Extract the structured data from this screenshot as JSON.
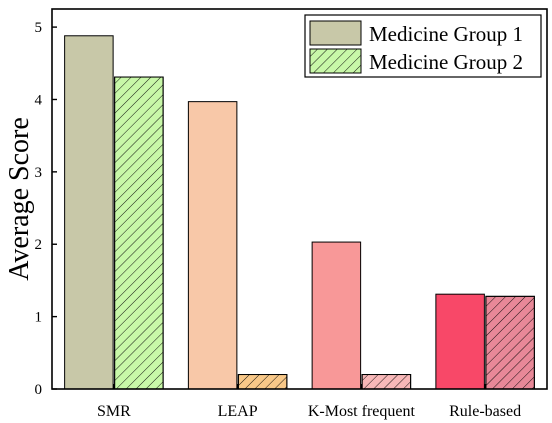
{
  "chart_data": {
    "type": "bar",
    "title": "",
    "xlabel": "",
    "ylabel": "Average Score",
    "ylim": [
      0,
      5.25
    ],
    "yticks": [
      0,
      1,
      2,
      3,
      4,
      5
    ],
    "categories": [
      "SMR",
      "LEAP",
      "K-Most frequent",
      "Rule-based"
    ],
    "series": [
      {
        "name": "Medicine Group 1",
        "values": [
          4.88,
          3.97,
          2.03,
          1.31
        ]
      },
      {
        "name": "Medicine Group 2",
        "values": [
          4.31,
          0.2,
          0.2,
          1.28
        ]
      }
    ],
    "colors": {
      "group1": [
        "#c8c8a8",
        "#f8c8a8",
        "#f89898",
        "#f84868"
      ],
      "group2": [
        "#c8f8a8",
        "#f8c888",
        "#f8b8b8",
        "#e88898"
      ],
      "legend_group1": "#c8c8a8",
      "legend_group2": "#c8f8a8"
    },
    "grid": false,
    "legend_position": "top-right",
    "group2_pattern": "diagonal-hatch"
  }
}
